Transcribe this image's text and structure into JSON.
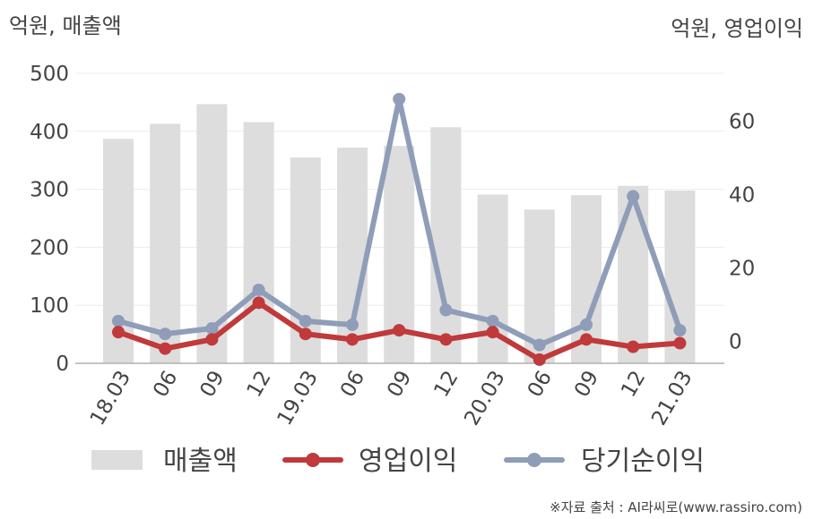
{
  "chart_data": {
    "type": "bar+line",
    "categories": [
      "18.03",
      "06",
      "09",
      "12",
      "19.03",
      "06",
      "09",
      "12",
      "20.03",
      "06",
      "09",
      "12",
      "21.03"
    ],
    "left_axis": {
      "label": "억원, 매출액",
      "ticks": [
        "0",
        "100",
        "200",
        "300",
        "400",
        "500"
      ],
      "range": [
        0,
        500
      ]
    },
    "right_axis": {
      "label": "억원, 영업이익",
      "ticks": [
        "0",
        "20",
        "40",
        "60"
      ],
      "range": [
        -6,
        73
      ]
    },
    "series": [
      {
        "name": "매출액",
        "type": "bar",
        "axis": "left",
        "color": "#dddddd",
        "values": [
          387,
          413,
          447,
          416,
          355,
          372,
          375,
          407,
          291,
          265,
          290,
          306,
          298
        ]
      },
      {
        "name": "영업이익",
        "type": "line",
        "axis": "right",
        "color": "#c0393b",
        "values": [
          2.5,
          -2,
          0.5,
          10.5,
          2,
          0.5,
          3,
          0.5,
          2.5,
          -5,
          0.5,
          -1.5,
          -0.5
        ]
      },
      {
        "name": "당기순이익",
        "type": "line",
        "axis": "right",
        "color": "#8f9db8",
        "values": [
          5.5,
          2,
          3.5,
          14,
          5.5,
          4.5,
          66,
          8.5,
          5.5,
          -1,
          4.5,
          39.5,
          3
        ]
      }
    ],
    "grid": true,
    "legend": "bottom"
  },
  "source_note": "※자료 출처 : AI라씨로(www.rassiro.com)"
}
